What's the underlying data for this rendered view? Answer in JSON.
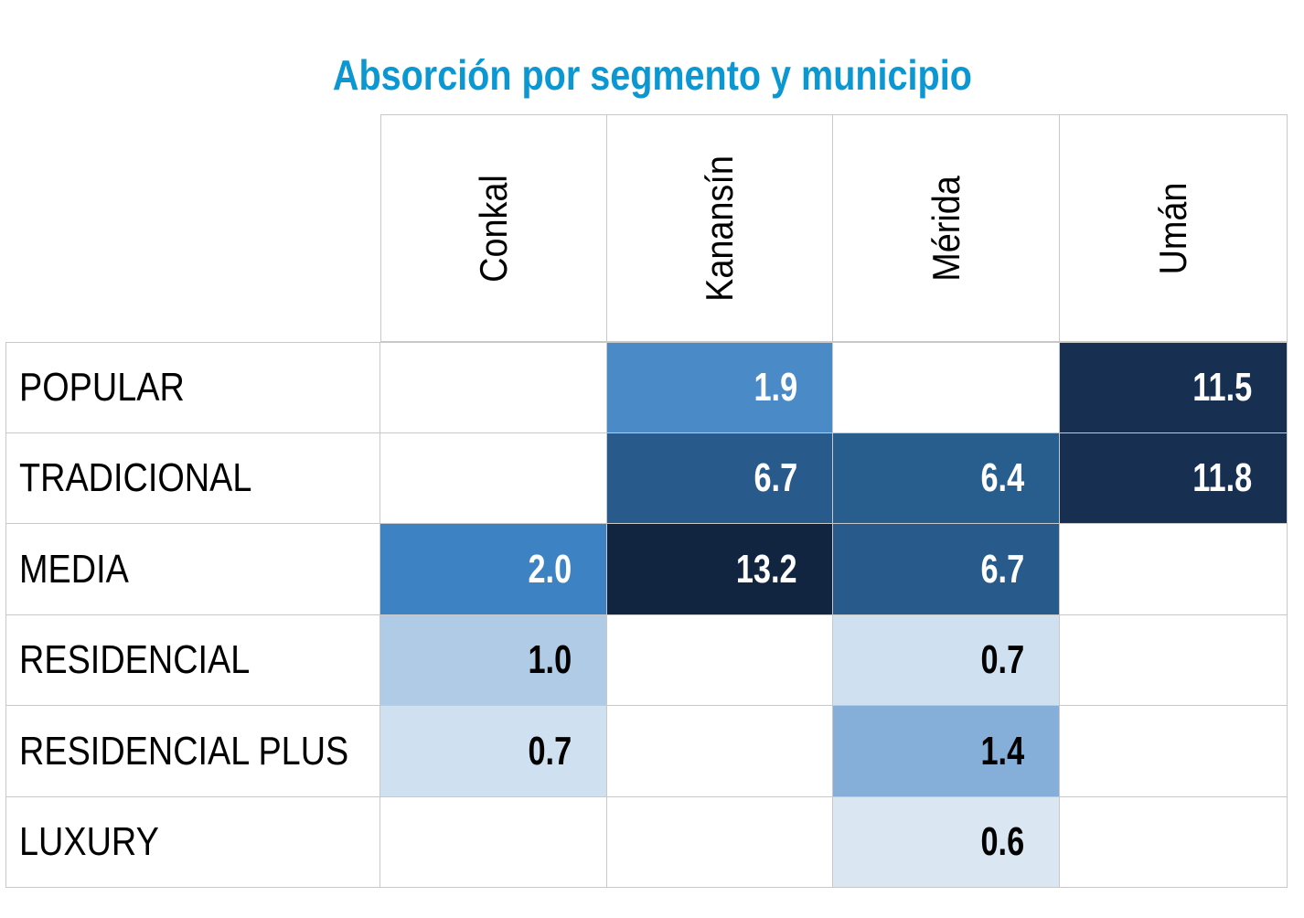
{
  "chart_data": {
    "type": "heatmap",
    "title": "Absorción por segmento y municipio",
    "columns": [
      "Conkal",
      "Kanansín",
      "Mérida",
      "Umán"
    ],
    "rows": [
      "POPULAR",
      "TRADICIONAL",
      "MEDIA",
      "RESIDENCIAL",
      "RESIDENCIAL PLUS",
      "LUXURY"
    ],
    "values": [
      [
        null,
        1.9,
        null,
        11.5
      ],
      [
        null,
        6.7,
        6.4,
        11.8
      ],
      [
        2.0,
        13.2,
        6.7,
        null
      ],
      [
        1.0,
        null,
        0.7,
        null
      ],
      [
        0.7,
        null,
        1.4,
        null
      ],
      [
        null,
        null,
        0.6,
        null
      ]
    ],
    "colors": [
      [
        null,
        "#4a8ac6",
        null,
        "#173052"
      ],
      [
        null,
        "#285b8c",
        "#285e8e",
        "#173052"
      ],
      [
        "#3d82c2",
        "#112440",
        "#285b8c",
        null
      ],
      [
        "#b0cbe5",
        null,
        "#cfe0f0",
        null
      ],
      [
        "#cfe0f0",
        null,
        "#85afd9",
        null
      ],
      [
        null,
        null,
        "#dae7f3",
        null
      ]
    ]
  }
}
